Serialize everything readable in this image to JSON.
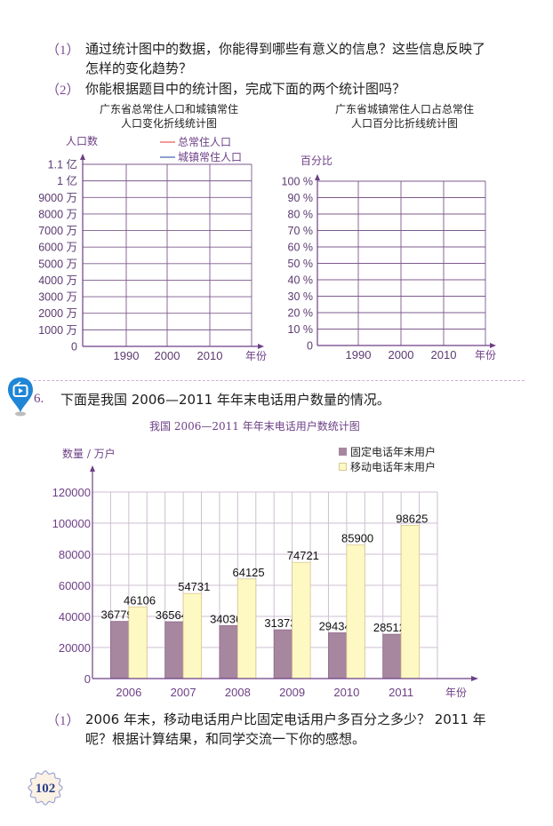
{
  "part_prev": {
    "q1": {
      "num": "（1）",
      "line1": "通过统计图中的数据，你能得到哪些有意义的信息？这些信息反映了",
      "line2": "怎样的变化趋势？"
    },
    "q2": {
      "num": "（2）",
      "text": "你能根据题目中的统计图，完成下面的两个统计图吗？"
    }
  },
  "problem6": {
    "num": "6.",
    "text": "下面是我国 2006—2011 年年末电话用户数量的情况。",
    "icon": "video-pin-icon",
    "q1": {
      "num": "（1）",
      "line1": "2006 年末，移动电话用户比固定电话用户多百分之多少？ 2011 年",
      "line2": "呢？根据计算结果，和同学交流一下你的感想。"
    }
  },
  "page": {
    "number": "102"
  },
  "colors": {
    "accent_purple": "#6d3f86",
    "grid_dark": "#7d5a8c",
    "grid_light": "#cdbfd1",
    "fixed_bar": "#a7869f",
    "mobile_bar": "#fef9c2",
    "legend_total": "#f19a98",
    "legend_urban": "#8f9fd2",
    "pin_blue": "#1f86d6"
  },
  "chart_data": [
    {
      "type": "line",
      "title": "广东省总常住人口和城镇常住人口变化折线统计图",
      "title_lines": [
        "广东省总常住人口和城镇常住",
        "人口变化折线统计图"
      ],
      "xlabel": "年份",
      "ylabel": "人口数",
      "categories": [
        "1990",
        "2000",
        "2010"
      ],
      "y_ticks": [
        "0",
        "1000 万",
        "2000 万",
        "3000 万",
        "4000 万",
        "5000 万",
        "6000 万",
        "7000 万",
        "8000 万",
        "9000 万",
        "1 亿",
        "1.1 亿"
      ],
      "ylim": [
        0,
        110000000
      ],
      "series": [
        {
          "name": "总常住人口",
          "color": "#f19a98",
          "values": []
        },
        {
          "name": "城镇常住人口",
          "color": "#8f9fd2",
          "values": []
        }
      ],
      "grid": true,
      "legend_position": "top-right"
    },
    {
      "type": "line",
      "title": "广东省城镇常住人口占总常住人口百分比折线统计图",
      "title_lines": [
        "广东省城镇常住人口占总常住",
        "人口百分比折线统计图"
      ],
      "xlabel": "年份",
      "ylabel": "百分比",
      "categories": [
        "1990",
        "2000",
        "2010"
      ],
      "y_ticks": [
        "0",
        "10 %",
        "20 %",
        "30 %",
        "40 %",
        "50 %",
        "60 %",
        "70 %",
        "80 %",
        "90 %",
        "100 %"
      ],
      "ylim": [
        0,
        100
      ],
      "series": [],
      "grid": true
    },
    {
      "type": "bar",
      "title": "我国 2006—2011 年年末电话用户数统计图",
      "xlabel": "年份",
      "ylabel": "数量 / 万户",
      "categories": [
        "2006",
        "2007",
        "2008",
        "2009",
        "2010",
        "2011"
      ],
      "series": [
        {
          "name": "固定电话年末用户",
          "color": "#a7869f",
          "values": [
            36779,
            36564,
            34036,
            31373,
            29434,
            28512
          ]
        },
        {
          "name": "移动电话年末用户",
          "color": "#fef9c2",
          "values": [
            46106,
            54731,
            64125,
            74721,
            85900,
            98625
          ]
        }
      ],
      "y_ticks": [
        "0",
        "20000",
        "40000",
        "60000",
        "80000",
        "100000",
        "120000"
      ],
      "ylim": [
        0,
        120000
      ],
      "grid": true,
      "legend_position": "top-right"
    }
  ]
}
